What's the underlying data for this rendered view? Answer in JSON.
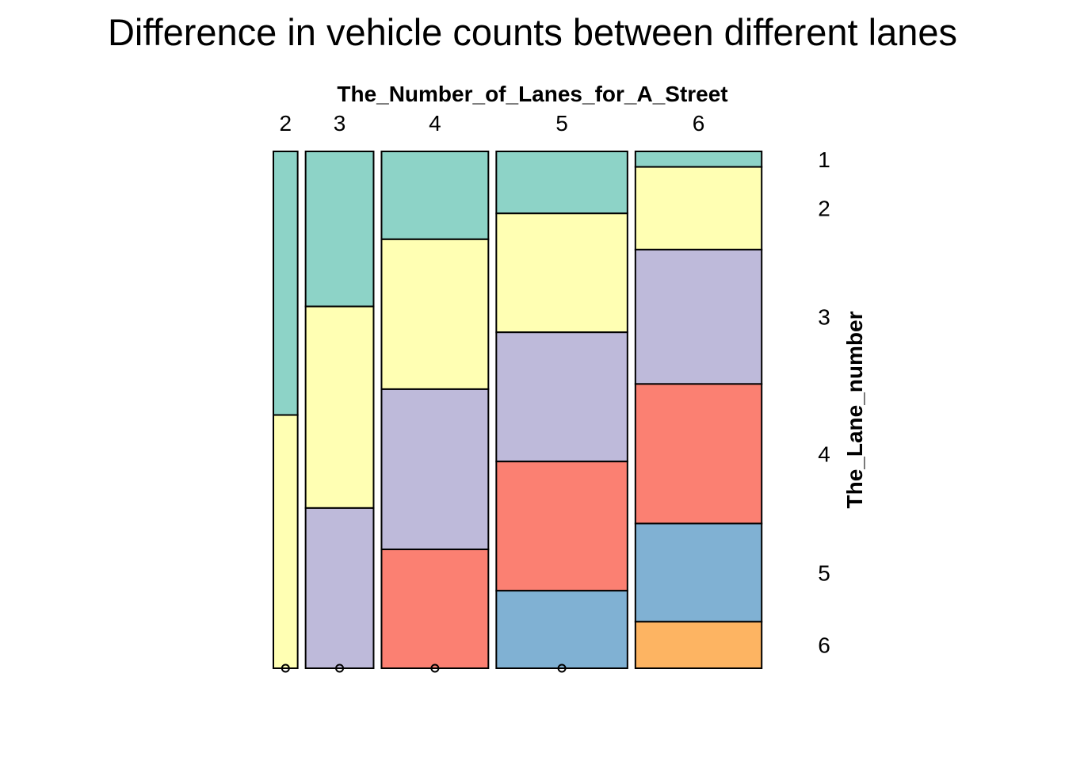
{
  "chart_data": {
    "type": "mosaic",
    "title": "Difference in vehicle counts between different lanes",
    "xlabel": "The_Number_of_Lanes_for_A_Street",
    "ylabel": "The_Lane_number",
    "categories": [
      "2",
      "3",
      "4",
      "5",
      "6"
    ],
    "column_fractions": [
      0.05,
      0.14,
      0.22,
      0.27,
      0.26
    ],
    "series": [
      {
        "name": "1",
        "color": "#8DD3C7",
        "values": [
          0.51,
          0.3,
          0.17,
          0.12,
          0.03
        ]
      },
      {
        "name": "2",
        "color": "#FFFFB3",
        "values": [
          0.49,
          0.39,
          0.29,
          0.23,
          0.16
        ]
      },
      {
        "name": "3",
        "color": "#BEBADA",
        "values": [
          0.0,
          0.31,
          0.31,
          0.25,
          0.26
        ]
      },
      {
        "name": "4",
        "color": "#FB8072",
        "values": [
          0.0,
          0.0,
          0.23,
          0.25,
          0.27
        ]
      },
      {
        "name": "5",
        "color": "#80B1D3",
        "values": [
          0.0,
          0.0,
          0.0,
          0.15,
          0.19
        ]
      },
      {
        "name": "6",
        "color": "#FDB462",
        "values": [
          0.0,
          0.0,
          0.0,
          0.0,
          0.09
        ]
      }
    ]
  }
}
